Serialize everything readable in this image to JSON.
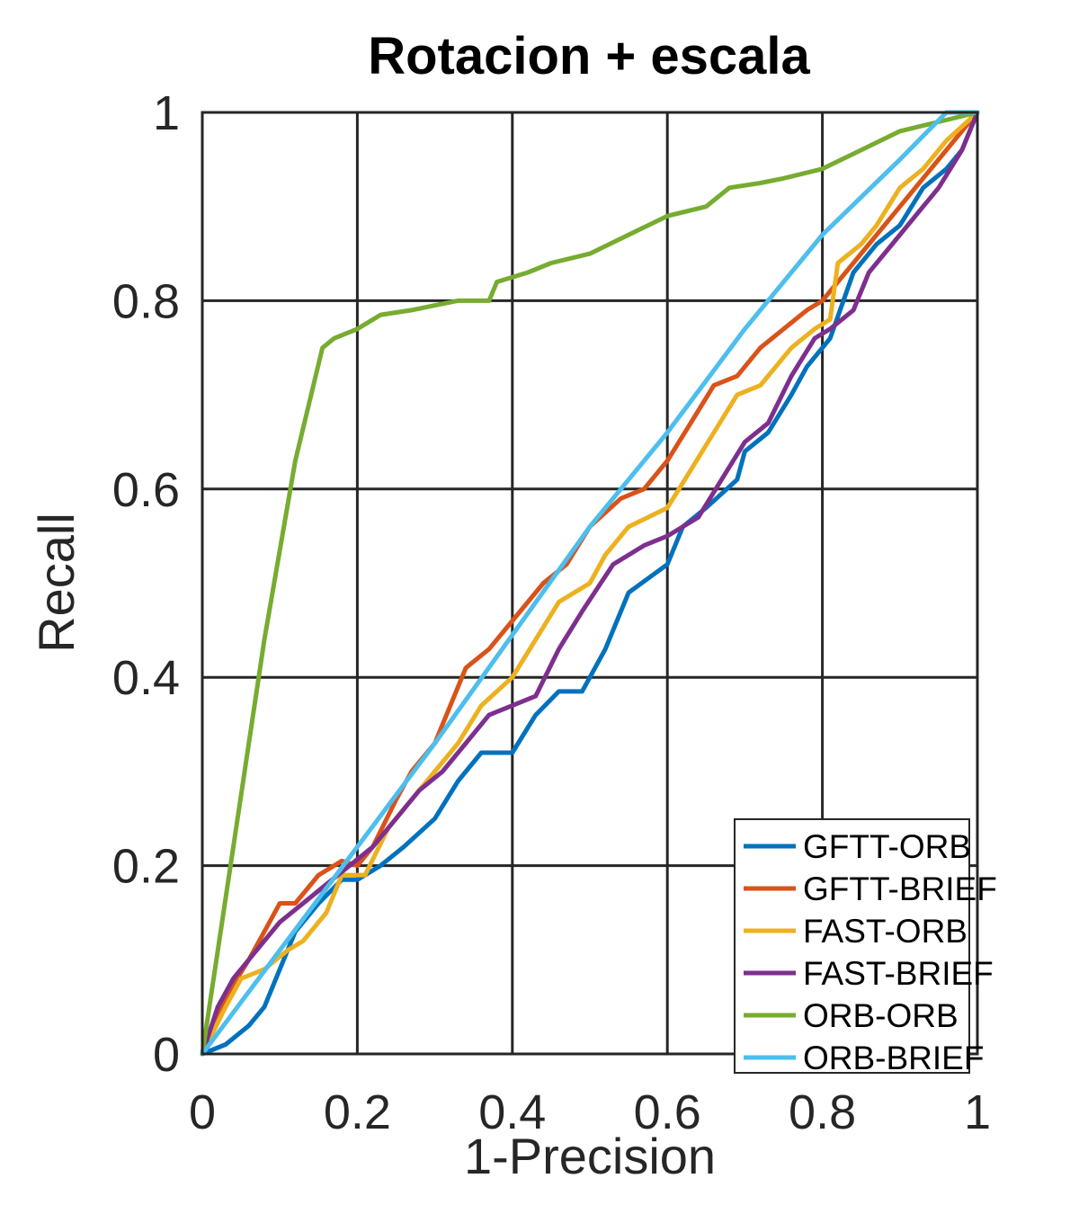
{
  "chart_data": {
    "type": "line",
    "title": "Rotacion + escala",
    "xlabel": "1-Precision",
    "ylabel": "Recall",
    "xlim": [
      0,
      1
    ],
    "ylim": [
      0,
      1
    ],
    "x_ticks": [
      "0",
      "0.2",
      "0.4",
      "0.6",
      "0.8",
      "1"
    ],
    "y_ticks": [
      "0",
      "0.2",
      "0.4",
      "0.6",
      "0.8",
      "1"
    ],
    "grid": true,
    "legend_position": "bottom-right",
    "series": [
      {
        "name": "GFTT-ORB",
        "color": "#0072BD",
        "points": [
          [
            0,
            0
          ],
          [
            0.03,
            0.01
          ],
          [
            0.06,
            0.03
          ],
          [
            0.08,
            0.05
          ],
          [
            0.1,
            0.09
          ],
          [
            0.12,
            0.13
          ],
          [
            0.15,
            0.16
          ],
          [
            0.18,
            0.185
          ],
          [
            0.2,
            0.185
          ],
          [
            0.23,
            0.2
          ],
          [
            0.26,
            0.22
          ],
          [
            0.3,
            0.25
          ],
          [
            0.33,
            0.29
          ],
          [
            0.36,
            0.32
          ],
          [
            0.4,
            0.32
          ],
          [
            0.43,
            0.36
          ],
          [
            0.46,
            0.385
          ],
          [
            0.49,
            0.385
          ],
          [
            0.52,
            0.43
          ],
          [
            0.55,
            0.49
          ],
          [
            0.6,
            0.52
          ],
          [
            0.62,
            0.56
          ],
          [
            0.65,
            0.58
          ],
          [
            0.69,
            0.61
          ],
          [
            0.7,
            0.64
          ],
          [
            0.73,
            0.66
          ],
          [
            0.76,
            0.7
          ],
          [
            0.78,
            0.73
          ],
          [
            0.81,
            0.76
          ],
          [
            0.84,
            0.83
          ],
          [
            0.87,
            0.86
          ],
          [
            0.9,
            0.88
          ],
          [
            0.93,
            0.92
          ],
          [
            0.96,
            0.94
          ],
          [
            0.98,
            0.96
          ],
          [
            1,
            1
          ]
        ]
      },
      {
        "name": "GFTT-BRIEF",
        "color": "#D95319",
        "points": [
          [
            0,
            0
          ],
          [
            0.03,
            0.06
          ],
          [
            0.06,
            0.1
          ],
          [
            0.08,
            0.13
          ],
          [
            0.1,
            0.16
          ],
          [
            0.12,
            0.16
          ],
          [
            0.15,
            0.19
          ],
          [
            0.18,
            0.205
          ],
          [
            0.2,
            0.2
          ],
          [
            0.22,
            0.22
          ],
          [
            0.25,
            0.27
          ],
          [
            0.27,
            0.3
          ],
          [
            0.3,
            0.33
          ],
          [
            0.34,
            0.41
          ],
          [
            0.37,
            0.43
          ],
          [
            0.4,
            0.46
          ],
          [
            0.44,
            0.5
          ],
          [
            0.47,
            0.52
          ],
          [
            0.5,
            0.56
          ],
          [
            0.54,
            0.59
          ],
          [
            0.57,
            0.6
          ],
          [
            0.6,
            0.63
          ],
          [
            0.63,
            0.67
          ],
          [
            0.66,
            0.71
          ],
          [
            0.69,
            0.72
          ],
          [
            0.72,
            0.75
          ],
          [
            0.75,
            0.77
          ],
          [
            0.78,
            0.79
          ],
          [
            0.8,
            0.8
          ],
          [
            0.82,
            0.82
          ],
          [
            0.84,
            0.84
          ],
          [
            0.86,
            0.86
          ],
          [
            0.89,
            0.89
          ],
          [
            0.92,
            0.92
          ],
          [
            0.95,
            0.95
          ],
          [
            0.97,
            0.97
          ],
          [
            1,
            1
          ]
        ]
      },
      {
        "name": "FAST-ORB",
        "color": "#EDB120",
        "points": [
          [
            0,
            0
          ],
          [
            0.03,
            0.05
          ],
          [
            0.05,
            0.08
          ],
          [
            0.08,
            0.09
          ],
          [
            0.11,
            0.11
          ],
          [
            0.13,
            0.12
          ],
          [
            0.16,
            0.15
          ],
          [
            0.18,
            0.19
          ],
          [
            0.21,
            0.19
          ],
          [
            0.24,
            0.24
          ],
          [
            0.27,
            0.27
          ],
          [
            0.3,
            0.3
          ],
          [
            0.33,
            0.33
          ],
          [
            0.36,
            0.37
          ],
          [
            0.4,
            0.4
          ],
          [
            0.43,
            0.44
          ],
          [
            0.46,
            0.48
          ],
          [
            0.5,
            0.5
          ],
          [
            0.52,
            0.53
          ],
          [
            0.55,
            0.56
          ],
          [
            0.6,
            0.58
          ],
          [
            0.63,
            0.62
          ],
          [
            0.66,
            0.66
          ],
          [
            0.69,
            0.7
          ],
          [
            0.72,
            0.71
          ],
          [
            0.76,
            0.75
          ],
          [
            0.79,
            0.77
          ],
          [
            0.81,
            0.78
          ],
          [
            0.82,
            0.84
          ],
          [
            0.85,
            0.86
          ],
          [
            0.87,
            0.88
          ],
          [
            0.9,
            0.92
          ],
          [
            0.93,
            0.94
          ],
          [
            0.96,
            0.97
          ],
          [
            1,
            1
          ]
        ]
      },
      {
        "name": "FAST-BRIEF",
        "color": "#7E2F8E",
        "points": [
          [
            0,
            0
          ],
          [
            0.02,
            0.05
          ],
          [
            0.04,
            0.08
          ],
          [
            0.07,
            0.11
          ],
          [
            0.1,
            0.14
          ],
          [
            0.13,
            0.16
          ],
          [
            0.16,
            0.18
          ],
          [
            0.19,
            0.2
          ],
          [
            0.22,
            0.22
          ],
          [
            0.25,
            0.25
          ],
          [
            0.28,
            0.28
          ],
          [
            0.31,
            0.3
          ],
          [
            0.34,
            0.33
          ],
          [
            0.37,
            0.36
          ],
          [
            0.4,
            0.37
          ],
          [
            0.43,
            0.38
          ],
          [
            0.46,
            0.43
          ],
          [
            0.49,
            0.47
          ],
          [
            0.53,
            0.52
          ],
          [
            0.57,
            0.54
          ],
          [
            0.6,
            0.55
          ],
          [
            0.64,
            0.57
          ],
          [
            0.67,
            0.61
          ],
          [
            0.7,
            0.65
          ],
          [
            0.73,
            0.67
          ],
          [
            0.76,
            0.72
          ],
          [
            0.79,
            0.76
          ],
          [
            0.81,
            0.77
          ],
          [
            0.84,
            0.79
          ],
          [
            0.86,
            0.83
          ],
          [
            0.89,
            0.86
          ],
          [
            0.92,
            0.89
          ],
          [
            0.95,
            0.92
          ],
          [
            0.98,
            0.96
          ],
          [
            1,
            1
          ]
        ]
      },
      {
        "name": "ORB-ORB",
        "color": "#77AC30",
        "points": [
          [
            0,
            0
          ],
          [
            0.04,
            0.22
          ],
          [
            0.08,
            0.44
          ],
          [
            0.12,
            0.63
          ],
          [
            0.155,
            0.75
          ],
          [
            0.17,
            0.76
          ],
          [
            0.2,
            0.77
          ],
          [
            0.23,
            0.785
          ],
          [
            0.27,
            0.79
          ],
          [
            0.3,
            0.795
          ],
          [
            0.33,
            0.8
          ],
          [
            0.37,
            0.8
          ],
          [
            0.38,
            0.82
          ],
          [
            0.42,
            0.83
          ],
          [
            0.45,
            0.84
          ],
          [
            0.5,
            0.85
          ],
          [
            0.55,
            0.87
          ],
          [
            0.6,
            0.89
          ],
          [
            0.65,
            0.9
          ],
          [
            0.68,
            0.92
          ],
          [
            0.72,
            0.925
          ],
          [
            0.75,
            0.93
          ],
          [
            0.8,
            0.94
          ],
          [
            0.85,
            0.96
          ],
          [
            0.9,
            0.98
          ],
          [
            0.95,
            0.99
          ],
          [
            1,
            1
          ]
        ]
      },
      {
        "name": "ORB-BRIEF",
        "color": "#4DBEEE",
        "points": [
          [
            0,
            0
          ],
          [
            0.1,
            0.11
          ],
          [
            0.2,
            0.22
          ],
          [
            0.3,
            0.33
          ],
          [
            0.4,
            0.445
          ],
          [
            0.5,
            0.56
          ],
          [
            0.6,
            0.66
          ],
          [
            0.7,
            0.77
          ],
          [
            0.8,
            0.87
          ],
          [
            0.9,
            0.95
          ],
          [
            0.96,
            1
          ],
          [
            1,
            1
          ]
        ]
      }
    ]
  }
}
